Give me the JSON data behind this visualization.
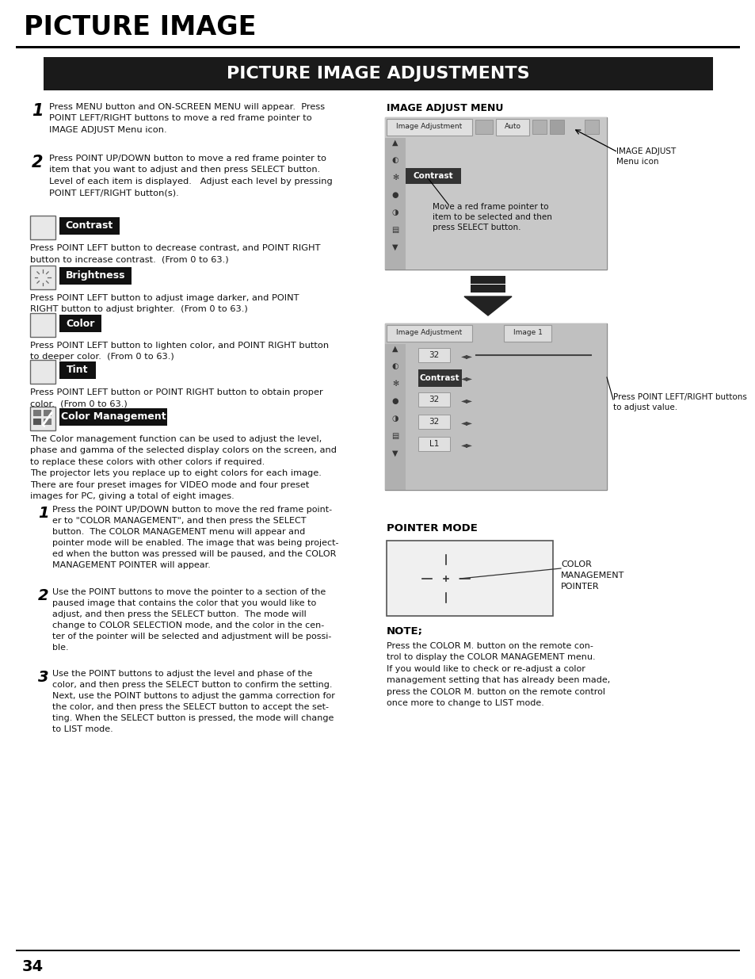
{
  "title_main": "PICTURE IMAGE",
  "title_banner": "PICTURE IMAGE ADJUSTMENTS",
  "bg_color": "#ffffff",
  "banner_bg": "#1a1a1a",
  "banner_text_color": "#ffffff",
  "step1_text": "Press MENU button and ON-SCREEN MENU will appear.  Press\nPOINT LEFT/RIGHT buttons to move a red frame pointer to\nIMAGE ADJUST Menu icon.",
  "step2_text": "Press POINT UP/DOWN button to move a red frame pointer to\nitem that you want to adjust and then press SELECT button.\nLevel of each item is displayed.   Adjust each level by pressing\nPOINT LEFT/RIGHT button(s).",
  "contrast_label": "Contrast",
  "contrast_text": "Press POINT LEFT button to decrease contrast, and POINT RIGHT\nbutton to increase contrast.  (From 0 to 63.)",
  "brightness_label": "Brightness",
  "brightness_text": "Press POINT LEFT button to adjust image darker, and POINT\nRIGHT button to adjust brighter.  (From 0 to 63.)",
  "color_label": "Color",
  "color_text": "Press POINT LEFT button to lighten color, and POINT RIGHT button\nto deeper color.  (From 0 to 63.)",
  "tint_label": "Tint",
  "tint_text": "Press POINT LEFT button or POINT RIGHT button to obtain proper\ncolor.  (From 0 to 63.)",
  "colormgmt_label": "Color Management",
  "colormgmt_text1": "The Color management function can be used to adjust the level,\nphase and gamma of the selected display colors on the screen, and\nto replace these colors with other colors if required.\nThe projector lets you replace up to eight colors for each image.\nThere are four preset images for VIDEO mode and four preset\nimages for PC, giving a total of eight images.",
  "cm_step1": "Press the POINT UP/DOWN button to move the red frame point-\ner to \"COLOR MANAGEMENT\", and then press the SELECT\nbutton.  The COLOR MANAGEMENT menu will appear and\npointer mode will be enabled. The image that was being project-\ned when the button was pressed will be paused, and the COLOR\nMANAGEMENT POINTER will appear.",
  "cm_step2": "Use the POINT buttons to move the pointer to a section of the\npaused image that contains the color that you would like to\nadjust, and then press the SELECT button.  The mode will\nchange to COLOR SELECTION mode, and the color in the cen-\nter of the pointer will be selected and adjustment will be possi-\nble.",
  "cm_step3": "Use the POINT buttons to adjust the level and phase of the\ncolor, and then press the SELECT button to confirm the setting.\nNext, use the POINT buttons to adjust the gamma correction for\nthe color, and then press the SELECT button to accept the set-\nting. When the SELECT button is pressed, the mode will change\nto LIST mode.",
  "right_heading": "IMAGE ADJUST MENU",
  "right_note1": "IMAGE ADJUST\nMenu icon",
  "right_note2": "Move a red frame pointer to\nitem to be selected and then\npress SELECT button.",
  "right_note3": "Press POINT LEFT/RIGHT buttons\nto adjust value.",
  "pointer_heading": "POINTER MODE",
  "pointer_note": "COLOR\nMANAGEMENT\nPOINTER",
  "note_heading": "NOTE;",
  "note_text": "Press the COLOR M. button on the remote con-\ntrol to display the COLOR MANAGEMENT menu.\nIf you would like to check or re-adjust a color\nmanagement setting that has already been made,\npress the COLOR M. button on the remote control\nonce more to change to LIST mode.",
  "page_number": "34"
}
